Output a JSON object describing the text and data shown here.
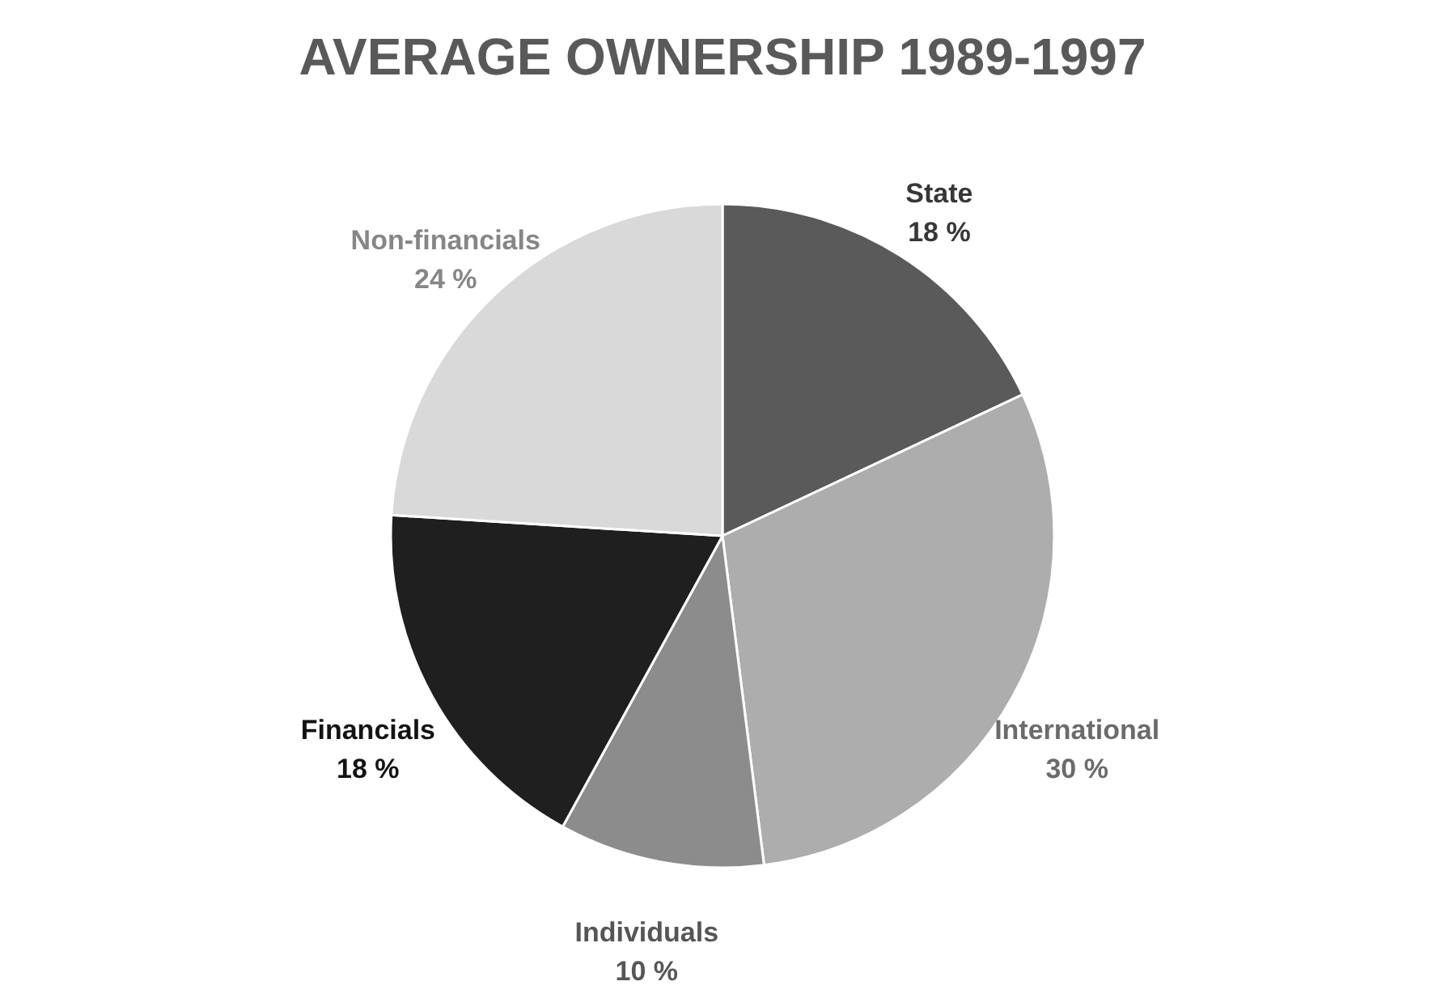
{
  "chart_data": {
    "type": "pie",
    "title": "AVERAGE OWNERSHIP 1989-1997",
    "categories": [
      "State",
      "International",
      "Individuals",
      "Financials",
      "Non-financials"
    ],
    "values": [
      18,
      30,
      10,
      18,
      24
    ],
    "value_labels": [
      "18 %",
      "30 %",
      "10 %",
      "18 %",
      "24 %"
    ],
    "colors": [
      "#5a5a5a",
      "#adadad",
      "#8c8c8c",
      "#1f1f1f",
      "#d9d9d9"
    ],
    "legend": false
  }
}
